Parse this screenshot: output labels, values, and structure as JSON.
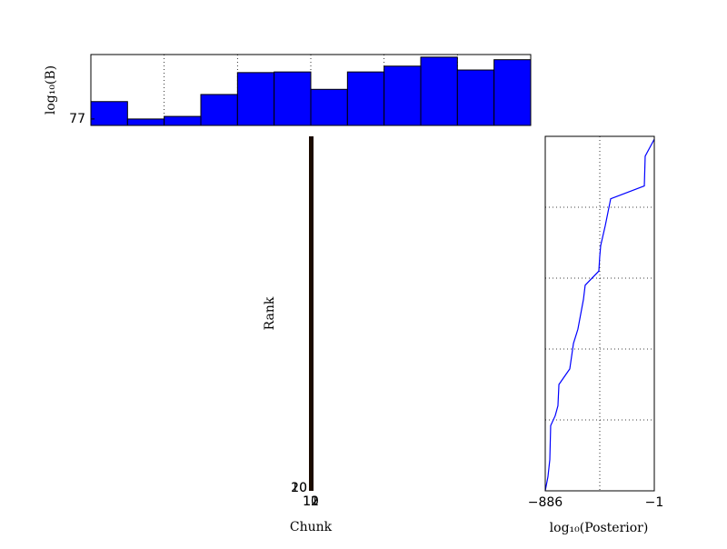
{
  "chart_data": [
    {
      "type": "histogram",
      "ylabel": "log₁₀(B)",
      "color": "#0000ff",
      "bins": [
        0,
        1,
        2,
        3,
        4,
        5,
        6,
        7,
        8,
        9,
        10,
        11,
        12
      ],
      "values": [
        77.27,
        77.0,
        77.04,
        77.38,
        77.72,
        77.73,
        77.46,
        77.73,
        77.82,
        77.96,
        77.76,
        77.92
      ],
      "xlim": [
        0,
        12
      ],
      "xticks": [
        2,
        4,
        6,
        8,
        10
      ],
      "ylim": [
        76.9,
        78.0
      ],
      "yticks": [
        77
      ],
      "grid": true
    },
    {
      "type": "image",
      "xlabel": "Chunk",
      "ylabel": "Rank",
      "xticks": [
        10,
        11,
        12
      ],
      "yticks": [
        10,
        20
      ]
    },
    {
      "type": "line",
      "xlabel": "log₁₀(Posterior)",
      "grid": true,
      "xlim": [
        -886,
        -1
      ],
      "xticks": [
        {
          "value": -886,
          "label": "−886"
        },
        {
          "value": -443.5,
          "label": null
        },
        {
          "value": -1,
          "label": "−1"
        }
      ],
      "ylim": [
        0,
        25
      ],
      "yticks": [
        5,
        10,
        15,
        20
      ],
      "series": [
        {
          "color": "#0000ff",
          "x": [
            -886,
            -864,
            -849,
            -842,
            -805,
            -783,
            -775,
            -687,
            -657,
            -621,
            -576,
            -562,
            -451,
            -444,
            -436,
            -399,
            -355,
            -82,
            -75,
            -1
          ],
          "values": [
            0,
            1.0,
            2.2,
            4.6,
            5.3,
            6.0,
            7.5,
            8.6,
            10.4,
            11.4,
            13.5,
            14.5,
            15.5,
            16.5,
            17.3,
            18.7,
            20.6,
            21.5,
            23.6,
            24.8
          ]
        }
      ]
    }
  ]
}
